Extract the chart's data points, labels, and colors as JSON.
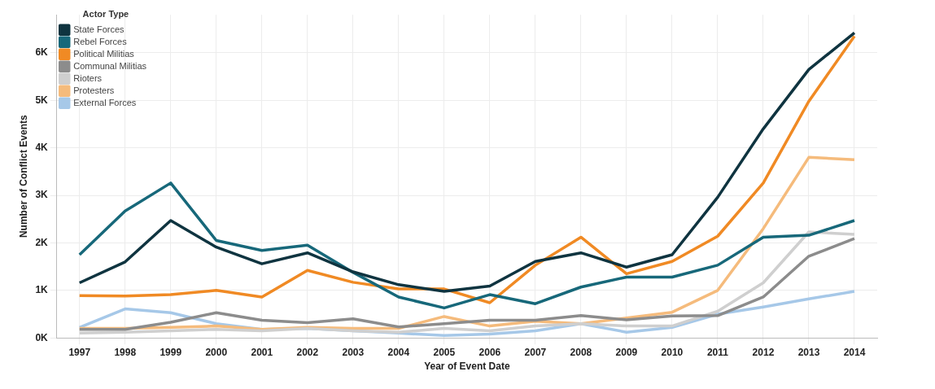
{
  "chart_data": {
    "type": "line",
    "xlabel": "Year of Event Date",
    "ylabel": "Number of Conflict Events",
    "legend_title": "Actor Type",
    "categories": [
      "1997",
      "1998",
      "1999",
      "2000",
      "2001",
      "2002",
      "2003",
      "2004",
      "2005",
      "2006",
      "2007",
      "2008",
      "2009",
      "2010",
      "2011",
      "2012",
      "2013",
      "2014"
    ],
    "series": [
      {
        "name": "State Forces",
        "color": "#0f3440",
        "values": [
          1.16,
          1.6,
          2.47,
          1.91,
          1.56,
          1.79,
          1.39,
          1.12,
          0.98,
          1.09,
          1.61,
          1.79,
          1.49,
          1.75,
          2.96,
          4.4,
          5.65,
          6.42
        ]
      },
      {
        "name": "Rebel Forces",
        "color": "#17687a",
        "values": [
          1.75,
          2.67,
          3.26,
          2.05,
          1.84,
          1.95,
          1.38,
          0.86,
          0.63,
          0.91,
          0.72,
          1.07,
          1.28,
          1.28,
          1.53,
          2.12,
          2.16,
          2.47
        ]
      },
      {
        "name": "Political Militias",
        "color": "#f08a24",
        "values": [
          0.89,
          0.88,
          0.91,
          1.0,
          0.86,
          1.42,
          1.17,
          1.03,
          1.03,
          0.74,
          1.53,
          2.12,
          1.35,
          1.61,
          2.14,
          3.26,
          4.98,
          6.35
        ]
      },
      {
        "name": "Communal Militias",
        "color": "#8c8c8c",
        "values": [
          0.18,
          0.18,
          0.33,
          0.53,
          0.37,
          0.32,
          0.4,
          0.23,
          0.3,
          0.37,
          0.37,
          0.47,
          0.38,
          0.46,
          0.47,
          0.86,
          1.72,
          2.09
        ]
      },
      {
        "name": "Rioters",
        "color": "#cfcfcf",
        "values": [
          0.1,
          0.12,
          0.15,
          0.18,
          0.15,
          0.2,
          0.15,
          0.12,
          0.2,
          0.15,
          0.25,
          0.3,
          0.25,
          0.25,
          0.56,
          1.16,
          2.23,
          2.18
        ]
      },
      {
        "name": "Protesters",
        "color": "#f5bb7c",
        "values": [
          0.2,
          0.2,
          0.22,
          0.25,
          0.18,
          0.22,
          0.2,
          0.2,
          0.45,
          0.25,
          0.35,
          0.3,
          0.42,
          0.54,
          1.0,
          2.3,
          3.8,
          3.75
        ]
      },
      {
        "name": "External Forces",
        "color": "#a6c8e8",
        "values": [
          0.22,
          0.61,
          0.53,
          0.3,
          0.18,
          0.2,
          0.15,
          0.1,
          0.05,
          0.08,
          0.15,
          0.3,
          0.12,
          0.22,
          0.5,
          0.65,
          0.82,
          0.98
        ]
      }
    ],
    "ylim": [
      0,
      6.8
    ],
    "yticks": [
      {
        "value": 0,
        "label": "0K"
      },
      {
        "value": 1,
        "label": "1K"
      },
      {
        "value": 2,
        "label": "2K"
      },
      {
        "value": 3,
        "label": "3K"
      },
      {
        "value": 4,
        "label": "4K"
      },
      {
        "value": 5,
        "label": "5K"
      },
      {
        "value": 6,
        "label": "6K"
      }
    ],
    "grid": true,
    "legend": "top left",
    "marker": "none",
    "line_style": "solid"
  }
}
